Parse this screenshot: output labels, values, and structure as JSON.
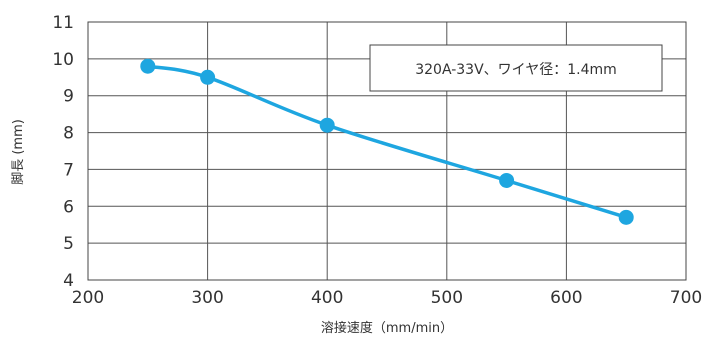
{
  "chart_data": {
    "type": "line",
    "xlabel": "溶接速度（mm/min）",
    "ylabel": "脚長 (mm)",
    "xlim": [
      200,
      700
    ],
    "ylim": [
      4,
      11
    ],
    "x_ticks": [
      "200",
      "300",
      "400",
      "500",
      "600",
      "700"
    ],
    "y_ticks": [
      "4",
      "5",
      "6",
      "7",
      "8",
      "9",
      "10",
      "11"
    ],
    "grid": true,
    "annotation": "320A-33V、ワイヤ径：1.4mm",
    "series": [
      {
        "color": "#1ea6e0",
        "points": [
          {
            "x": 250,
            "y": 9.8
          },
          {
            "x": 300,
            "y": 9.5
          },
          {
            "x": 400,
            "y": 8.2
          },
          {
            "x": 550,
            "y": 6.7
          },
          {
            "x": 650,
            "y": 5.7
          }
        ]
      }
    ]
  }
}
